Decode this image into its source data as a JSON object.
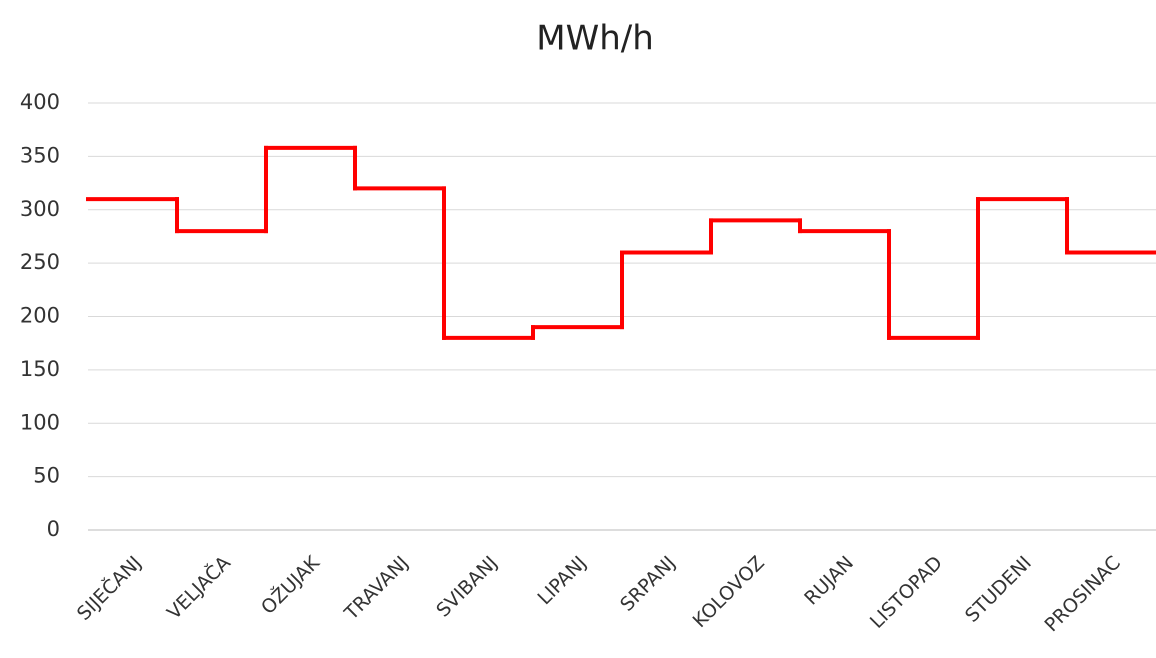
{
  "chart_data": {
    "type": "step",
    "title": "MWh/h",
    "categories": [
      "SIJEČANJ",
      "VELJAČA",
      "OŽUJAK",
      "TRAVANJ",
      "SVIBANJ",
      "LIPANJ",
      "SRPANJ",
      "KOLOVOZ",
      "RUJAN",
      "LISTOPAD",
      "STUDENI",
      "PROSINAC"
    ],
    "values": [
      310,
      280,
      358,
      320,
      180,
      190,
      260,
      290,
      280,
      180,
      310,
      260
    ],
    "color": "#ff0000",
    "ylim": [
      0,
      400
    ],
    "yticks": [
      0,
      50,
      100,
      150,
      200,
      250,
      300,
      350,
      400
    ],
    "grid": true
  }
}
